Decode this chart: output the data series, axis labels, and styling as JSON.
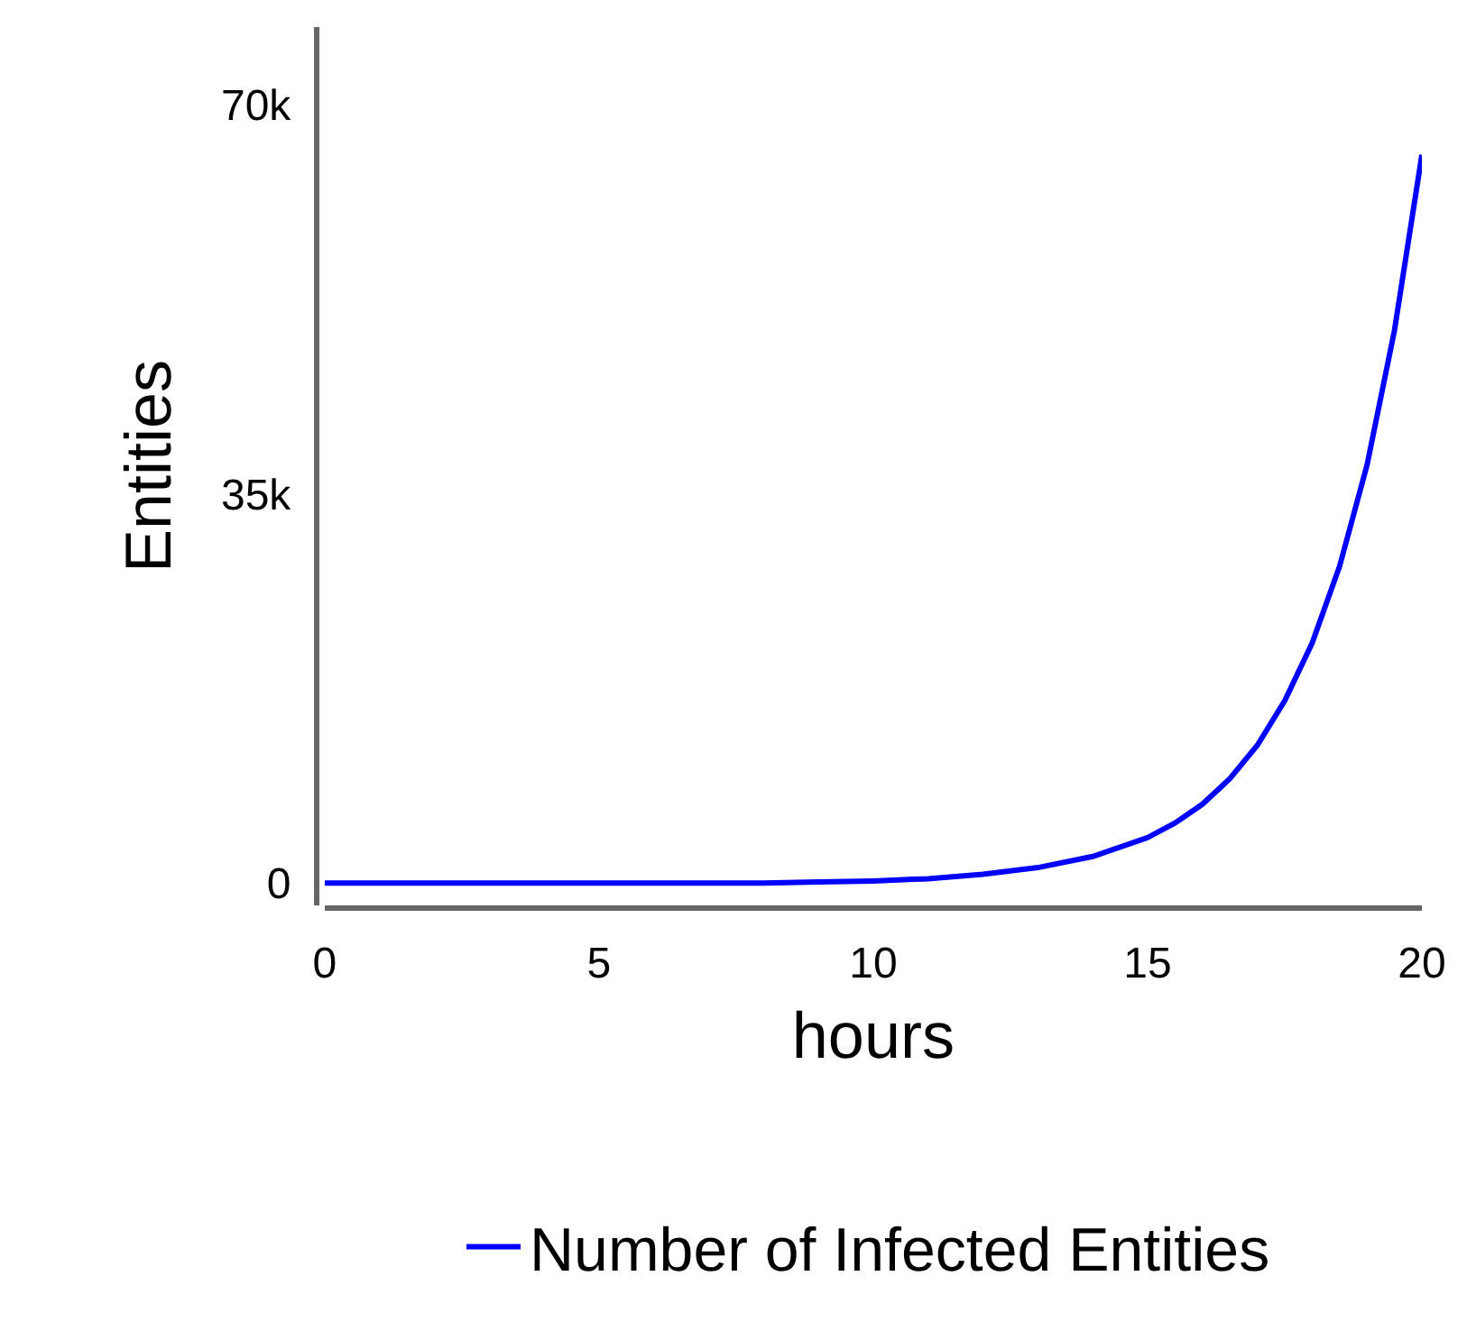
{
  "chart_data": {
    "type": "line",
    "xlabel": "hours",
    "ylabel": "Entities",
    "x": [
      0,
      2,
      4,
      6,
      8,
      9,
      10,
      11,
      12,
      13,
      14,
      15,
      15.5,
      16,
      16.5,
      17,
      17.5,
      18,
      18.5,
      19,
      19.5,
      20
    ],
    "series": [
      {
        "name": "Number of Infected Entities",
        "color": "#0000ff",
        "values": [
          0,
          0,
          0,
          0,
          0,
          100,
          200,
          400,
          800,
          1400,
          2400,
          4100,
          5400,
          7100,
          9400,
          12400,
          16400,
          21600,
          28500,
          37600,
          49700,
          65500
        ]
      }
    ],
    "xlim": [
      0,
      20
    ],
    "xticks": [
      0,
      5,
      10,
      15,
      20
    ],
    "ylim": [
      -2000,
      77000
    ],
    "yticks": [
      {
        "value": 0,
        "label": "0"
      },
      {
        "value": 35000,
        "label": "35k"
      },
      {
        "value": 70000,
        "label": "70k"
      }
    ],
    "legend": "bottom",
    "marker": "none",
    "line_style": "solid"
  }
}
